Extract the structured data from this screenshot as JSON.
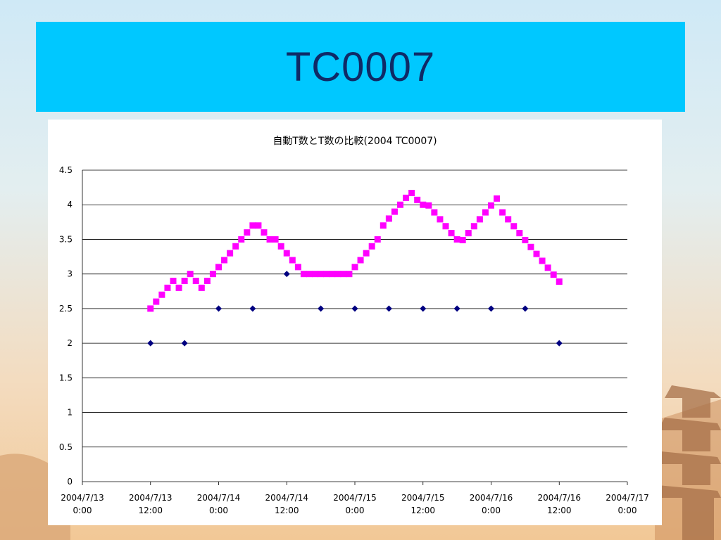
{
  "slide": {
    "title": "TC0007"
  },
  "colors": {
    "title_bar": "#00c8ff",
    "title_text": "#0f2a66",
    "series_auto": "#ff00ff",
    "series_manual": "#000080",
    "gridline": "#000000"
  },
  "chart_data": {
    "type": "scatter",
    "title": "自動T数とT数の比較(2004 TC0007)",
    "xlabel": "",
    "ylabel": "",
    "ylim": [
      0,
      4.5
    ],
    "y_ticks": [
      "0",
      "0.5",
      "1",
      "1.5",
      "2",
      "2.5",
      "3",
      "3.5",
      "4",
      "4.5"
    ],
    "xlim": [
      "2004-07-13 00:00",
      "2004-07-17 00:00"
    ],
    "x_ticks": [
      [
        "2004/7/13",
        "0:00"
      ],
      [
        "2004/7/13",
        "12:00"
      ],
      [
        "2004/7/14",
        "0:00"
      ],
      [
        "2004/7/14",
        "12:00"
      ],
      [
        "2004/7/15",
        "0:00"
      ],
      [
        "2004/7/15",
        "12:00"
      ],
      [
        "2004/7/16",
        "0:00"
      ],
      [
        "2004/7/16",
        "12:00"
      ],
      [
        "2004/7/17",
        "0:00"
      ]
    ],
    "grid": "horizontal",
    "legend": "none",
    "series": [
      {
        "marker": "square",
        "color": "#ff00ff",
        "x": [
          "2004-07-13 12:00",
          "2004-07-13 13:00",
          "2004-07-13 14:00",
          "2004-07-13 15:00",
          "2004-07-13 16:00",
          "2004-07-13 17:00",
          "2004-07-13 18:00",
          "2004-07-13 19:00",
          "2004-07-13 20:00",
          "2004-07-13 21:00",
          "2004-07-13 22:00",
          "2004-07-13 23:00",
          "2004-07-14 00:00",
          "2004-07-14 01:00",
          "2004-07-14 02:00",
          "2004-07-14 03:00",
          "2004-07-14 04:00",
          "2004-07-14 05:00",
          "2004-07-14 06:00",
          "2004-07-14 07:00",
          "2004-07-14 08:00",
          "2004-07-14 09:00",
          "2004-07-14 10:00",
          "2004-07-14 11:00",
          "2004-07-14 12:00",
          "2004-07-14 13:00",
          "2004-07-14 14:00",
          "2004-07-14 15:00",
          "2004-07-14 16:00",
          "2004-07-14 17:00",
          "2004-07-14 18:00",
          "2004-07-14 19:00",
          "2004-07-14 20:00",
          "2004-07-14 21:00",
          "2004-07-14 22:00",
          "2004-07-14 23:00",
          "2004-07-15 00:00",
          "2004-07-15 01:00",
          "2004-07-15 02:00",
          "2004-07-15 03:00",
          "2004-07-15 04:00",
          "2004-07-15 05:00",
          "2004-07-15 06:00",
          "2004-07-15 07:00",
          "2004-07-15 08:00",
          "2004-07-15 09:00",
          "2004-07-15 10:00",
          "2004-07-15 11:00",
          "2004-07-15 12:00",
          "2004-07-15 13:00",
          "2004-07-15 14:00",
          "2004-07-15 15:00",
          "2004-07-15 16:00",
          "2004-07-15 17:00",
          "2004-07-15 18:00",
          "2004-07-15 19:00",
          "2004-07-15 20:00",
          "2004-07-15 21:00",
          "2004-07-15 22:00",
          "2004-07-15 23:00",
          "2004-07-16 00:00",
          "2004-07-16 01:00",
          "2004-07-16 02:00",
          "2004-07-16 03:00",
          "2004-07-16 04:00",
          "2004-07-16 05:00",
          "2004-07-16 06:00",
          "2004-07-16 07:00",
          "2004-07-16 08:00",
          "2004-07-16 09:00",
          "2004-07-16 10:00",
          "2004-07-16 11:00",
          "2004-07-16 12:00"
        ],
        "y": [
          2.5,
          2.6,
          2.7,
          2.8,
          2.9,
          2.8,
          2.9,
          3.0,
          2.9,
          2.8,
          2.9,
          3.0,
          3.1,
          3.2,
          3.3,
          3.4,
          3.5,
          3.6,
          3.7,
          3.7,
          3.6,
          3.5,
          3.5,
          3.4,
          3.3,
          3.2,
          3.1,
          3.0,
          3.0,
          3.0,
          3.0,
          3.0,
          3.0,
          3.0,
          3.0,
          3.0,
          3.1,
          3.2,
          3.3,
          3.4,
          3.5,
          3.7,
          3.8,
          3.9,
          4.0,
          4.1,
          4.17,
          4.07,
          4.0,
          3.99,
          3.89,
          3.79,
          3.69,
          3.59,
          3.5,
          3.49,
          3.59,
          3.69,
          3.79,
          3.89,
          3.99,
          4.09,
          3.89,
          3.79,
          3.69,
          3.59,
          3.49,
          3.39,
          3.29,
          3.19,
          3.09,
          2.99,
          2.89
        ]
      },
      {
        "marker": "diamond",
        "color": "#000080",
        "x": [
          "2004-07-13 12:00",
          "2004-07-13 18:00",
          "2004-07-14 00:00",
          "2004-07-14 06:00",
          "2004-07-14 12:00",
          "2004-07-14 18:00",
          "2004-07-15 00:00",
          "2004-07-15 06:00",
          "2004-07-15 12:00",
          "2004-07-15 18:00",
          "2004-07-16 00:00",
          "2004-07-16 06:00",
          "2004-07-16 12:00"
        ],
        "y": [
          2.0,
          2.0,
          2.5,
          2.5,
          3.0,
          2.5,
          2.5,
          2.5,
          2.5,
          2.5,
          2.5,
          2.5,
          2.0
        ]
      }
    ]
  }
}
